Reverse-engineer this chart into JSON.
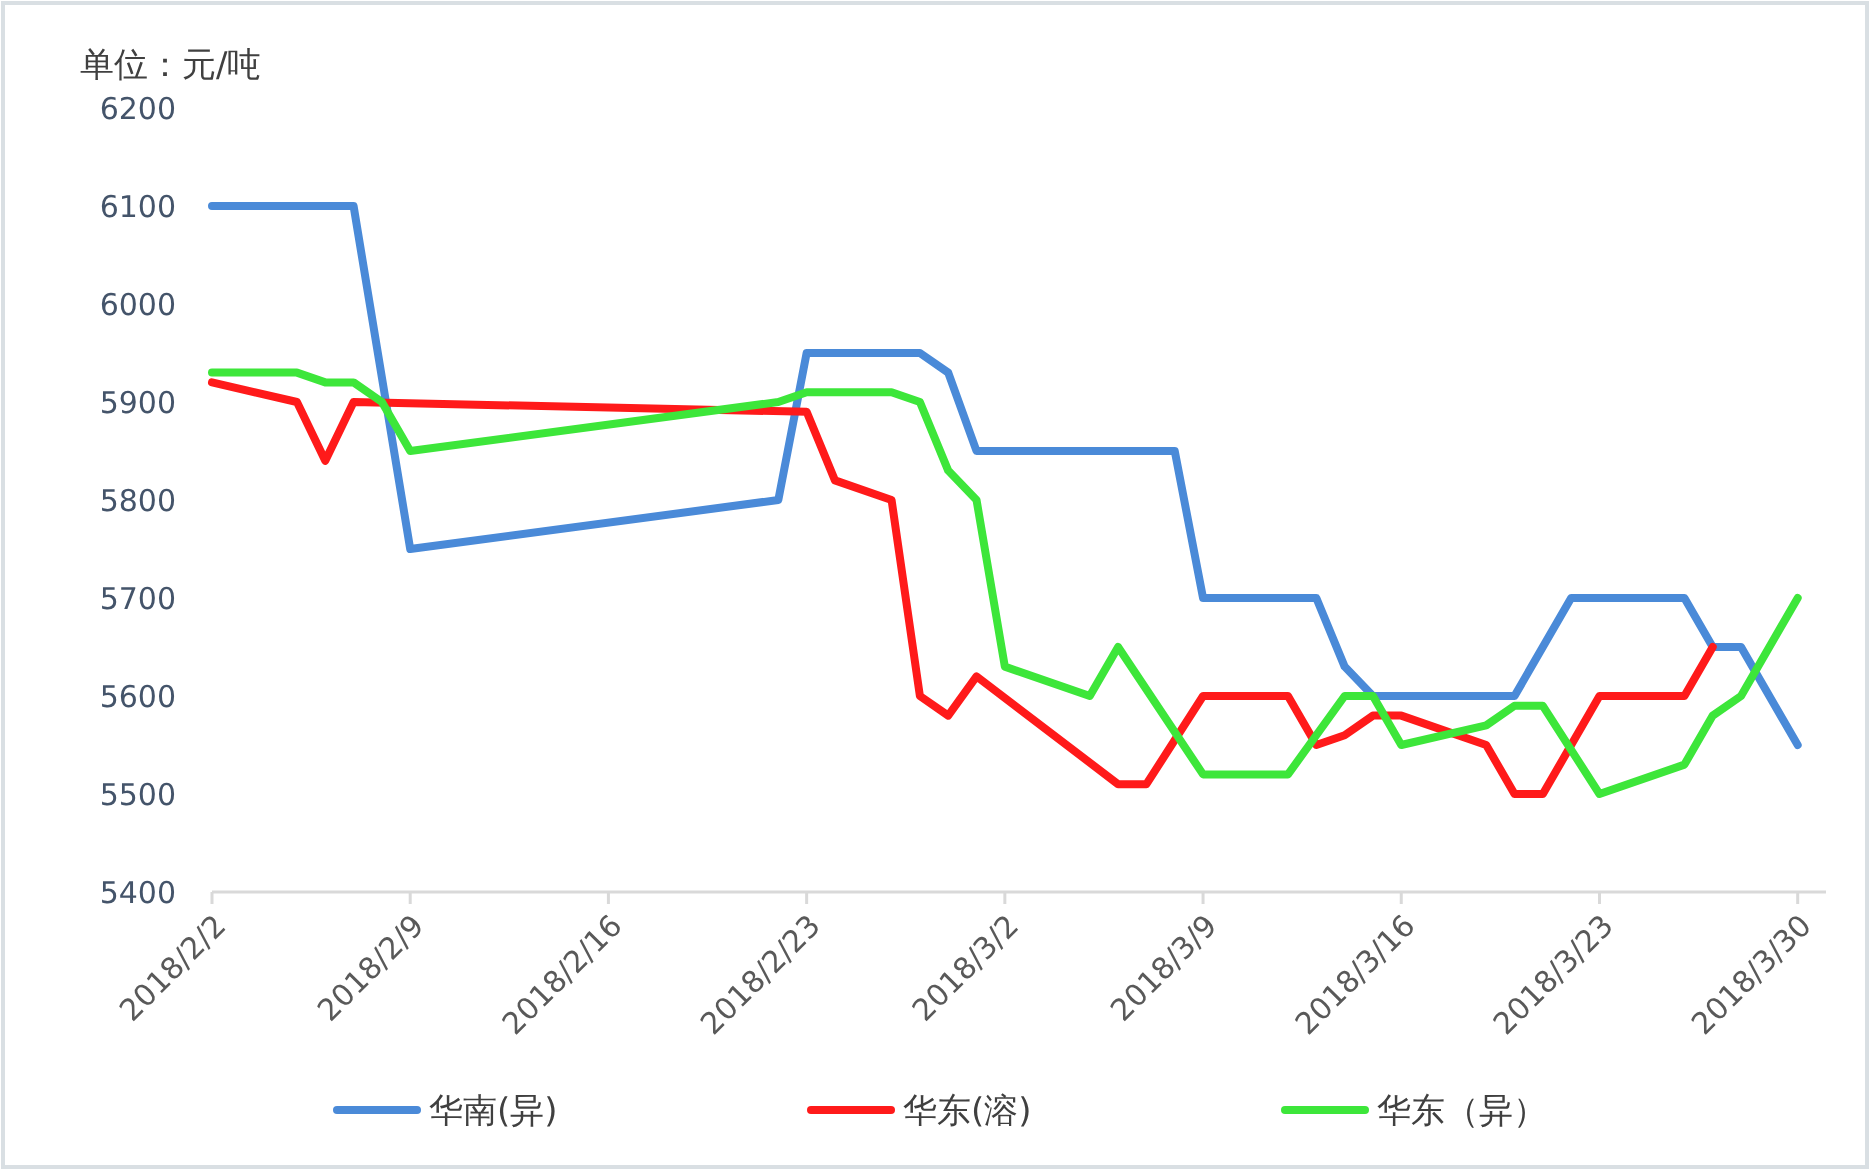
{
  "chart_data": {
    "type": "line",
    "ylabel": "单位：元/吨",
    "xlim": [
      "2018-02-02",
      "2018-03-31"
    ],
    "xticks": [
      {
        "value": "2018-02-02",
        "label": "2018/2/2"
      },
      {
        "value": "2018-02-09",
        "label": "2018/2/9"
      },
      {
        "value": "2018-02-16",
        "label": "2018/2/16"
      },
      {
        "value": "2018-02-23",
        "label": "2018/2/23"
      },
      {
        "value": "2018-03-02",
        "label": "2018/3/2"
      },
      {
        "value": "2018-03-09",
        "label": "2018/3/9"
      },
      {
        "value": "2018-03-16",
        "label": "2018/3/16"
      },
      {
        "value": "2018-03-23",
        "label": "2018/3/23"
      },
      {
        "value": "2018-03-30",
        "label": "2018/3/30"
      }
    ],
    "ylim": [
      5400,
      6200
    ],
    "yticks": [
      5400,
      5500,
      5600,
      5700,
      5800,
      5900,
      6000,
      6100,
      6200
    ],
    "legend": "bottom",
    "series": [
      {
        "name": "华南(异)",
        "color": "#4a8ad8",
        "x": [
          "2018-02-02",
          "2018-02-07",
          "2018-02-09",
          "2018-02-22",
          "2018-02-23",
          "2018-02-27",
          "2018-02-28",
          "2018-03-01",
          "2018-03-08",
          "2018-03-09",
          "2018-03-13",
          "2018-03-14",
          "2018-03-15",
          "2018-03-20",
          "2018-03-22",
          "2018-03-26",
          "2018-03-27",
          "2018-03-28",
          "2018-03-30"
        ],
        "values": [
          6100,
          6100,
          5750,
          5800,
          5950,
          5950,
          5930,
          5850,
          5850,
          5700,
          5700,
          5630,
          5600,
          5600,
          5700,
          5700,
          5650,
          5650,
          5550
        ]
      },
      {
        "name": "华东(溶)",
        "color": "#ff1a1a",
        "x": [
          "2018-02-02",
          "2018-02-05",
          "2018-02-06",
          "2018-02-07",
          "2018-02-23",
          "2018-02-24",
          "2018-02-26",
          "2018-02-27",
          "2018-02-28",
          "2018-03-01",
          "2018-03-06",
          "2018-03-07",
          "2018-03-09",
          "2018-03-12",
          "2018-03-13",
          "2018-03-14",
          "2018-03-15",
          "2018-03-16",
          "2018-03-19",
          "2018-03-20",
          "2018-03-21",
          "2018-03-23",
          "2018-03-26",
          "2018-03-27"
        ],
        "values": [
          5920,
          5900,
          5840,
          5900,
          5890,
          5820,
          5800,
          5600,
          5580,
          5620,
          5510,
          5510,
          5600,
          5600,
          5550,
          5560,
          5580,
          5580,
          5550,
          5500,
          5500,
          5600,
          5600,
          5650
        ]
      },
      {
        "name": "华东（异）",
        "color": "#3de63a",
        "x": [
          "2018-02-02",
          "2018-02-05",
          "2018-02-06",
          "2018-02-07",
          "2018-02-08",
          "2018-02-09",
          "2018-02-22",
          "2018-02-23",
          "2018-02-26",
          "2018-02-27",
          "2018-02-28",
          "2018-03-01",
          "2018-03-02",
          "2018-03-05",
          "2018-03-06",
          "2018-03-09",
          "2018-03-12",
          "2018-03-14",
          "2018-03-15",
          "2018-03-16",
          "2018-03-19",
          "2018-03-20",
          "2018-03-21",
          "2018-03-23",
          "2018-03-26",
          "2018-03-27",
          "2018-03-28",
          "2018-03-30"
        ],
        "values": [
          5930,
          5930,
          5920,
          5920,
          5900,
          5850,
          5900,
          5910,
          5910,
          5900,
          5830,
          5800,
          5630,
          5600,
          5650,
          5520,
          5520,
          5600,
          5600,
          5550,
          5570,
          5590,
          5590,
          5500,
          5530,
          5580,
          5600,
          5700
        ]
      }
    ]
  }
}
